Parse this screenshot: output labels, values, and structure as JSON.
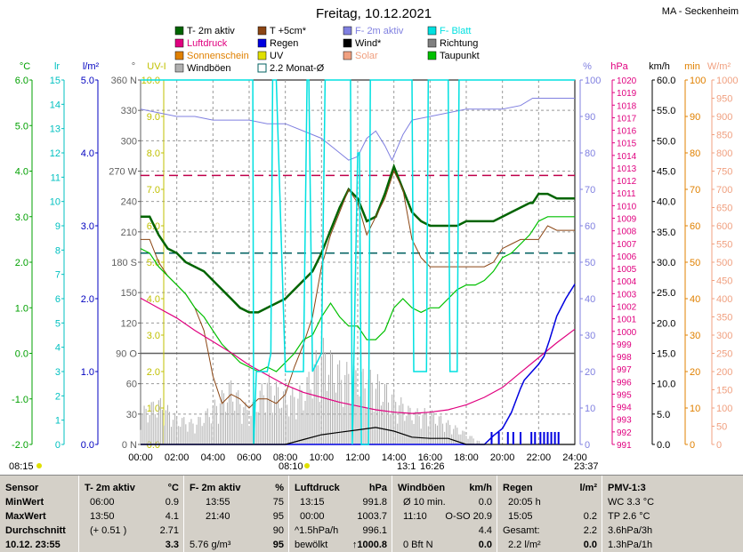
{
  "chart_data": {
    "type": "line",
    "title": "Freitag, 10.12.2021",
    "station": "MA - Seckenheim",
    "x_ticks": [
      "00:00",
      "02:00",
      "04:00",
      "06:00",
      "08:00",
      "10:00",
      "12:00",
      "14:00",
      "16:00",
      "18:00",
      "20:00",
      "22:00",
      "24:00"
    ],
    "legend": [
      {
        "label": "T- 2m aktiv",
        "color": "#006400"
      },
      {
        "label": "T +5cm*",
        "color": "#8b4513"
      },
      {
        "label": "F- 2m aktiv",
        "color": "#8080e0"
      },
      {
        "label": "F- Blatt",
        "color": "#00e0e0"
      },
      {
        "label": "Luftdruck",
        "color": "#e0007f"
      },
      {
        "label": "Regen",
        "color": "#0000e0"
      },
      {
        "label": "Wind*",
        "color": "#000000"
      },
      {
        "label": "Richtung",
        "color": "#808080"
      },
      {
        "label": "Sonnenschein",
        "color": "#e08000"
      },
      {
        "label": "UV",
        "color": "#e0e000"
      },
      {
        "label": "Solar",
        "color": "#f0a080"
      },
      {
        "label": "Taupunkt",
        "color": "#00c000"
      },
      {
        "label": "Windböen",
        "color": "#b0b0b0"
      },
      {
        "label": "2.2 Monat-Ø",
        "color": "#006060"
      }
    ],
    "axes": [
      {
        "unit": "°C",
        "color": "#00a000",
        "ticks": [
          "6.0",
          "5.0",
          "4.0",
          "3.0",
          "2.0",
          "1.0",
          "0.0",
          "-1.0",
          "-2.0"
        ]
      },
      {
        "unit": "lr",
        "color": "#00c0c0",
        "ticks": [
          "15",
          "14",
          "13",
          "12",
          "11",
          "10",
          "9",
          "8",
          "7",
          "6",
          "5",
          "4",
          "3",
          "2",
          "1",
          "0"
        ]
      },
      {
        "unit": "l/m²",
        "color": "#0000c0",
        "ticks": [
          "5.0",
          "4.0",
          "3.0",
          "2.0",
          "1.0",
          "0.0"
        ]
      },
      {
        "unit": "°",
        "color": "#606060",
        "ticks": [
          "360 N",
          "330",
          "300",
          "270 W",
          "240",
          "210",
          "180 S",
          "150",
          "120",
          "90 O",
          "60",
          "30",
          "0 N"
        ]
      },
      {
        "unit": "UV-I",
        "color": "#c0c000",
        "ticks": [
          "10.0",
          "9.0",
          "8.0",
          "7.0",
          "6.0",
          "5.0",
          "4.0",
          "3.0",
          "2.0",
          "1.0",
          "0.0"
        ]
      },
      {
        "unit": "%",
        "color": "#8080e0",
        "ticks": [
          "100",
          "90",
          "80",
          "70",
          "60",
          "50",
          "40",
          "30",
          "20",
          "10",
          "0"
        ]
      },
      {
        "unit": "hPa",
        "color": "#e0007f",
        "ticks": [
          "1020",
          "1019",
          "1018",
          "1017",
          "1016",
          "1015",
          "1014",
          "1013",
          "1012",
          "1011",
          "1010",
          "1009",
          "1008",
          "1007",
          "1006",
          "1005",
          "1004",
          "1003",
          "1002",
          "1001",
          "1000",
          "999",
          "998",
          "997",
          "996",
          "995",
          "994",
          "993",
          "992",
          "991"
        ]
      },
      {
        "unit": "km/h",
        "color": "#000000",
        "ticks": [
          "60.0",
          "55.0",
          "50.0",
          "45.0",
          "40.0",
          "35.0",
          "30.0",
          "25.0",
          "20.0",
          "15.0",
          "10.0",
          "5.0",
          "0.0"
        ]
      },
      {
        "unit": "min",
        "color": "#e08000",
        "ticks": [
          "100",
          "90",
          "80",
          "70",
          "60",
          "50",
          "40",
          "30",
          "20",
          "10",
          "0"
        ]
      },
      {
        "unit": "W/m²",
        "color": "#f0a080",
        "ticks": [
          "1000",
          "950",
          "900",
          "850",
          "800",
          "750",
          "700",
          "650",
          "600",
          "550",
          "500",
          "450",
          "400",
          "350",
          "300",
          "250",
          "200",
          "150",
          "100",
          "50",
          "0"
        ]
      }
    ],
    "markers": {
      "sunrise": "08:15",
      "sunset_left": "08:10",
      "culmination": "13:1",
      "culmination2": "16:26",
      "moonset": "23:37"
    },
    "hlines": [
      {
        "name": "pressure-avg",
        "value_hpa": 1012.7,
        "color": "#c0004a"
      },
      {
        "name": "temp-month-avg",
        "value_c": 2.2,
        "color": "#006060"
      }
    ],
    "series": [
      {
        "name": "T- 2m aktiv",
        "axis": "°C",
        "x": [
          0,
          0.5,
          1,
          1.5,
          2,
          2.5,
          3,
          3.5,
          4,
          4.5,
          5,
          5.5,
          6,
          6.5,
          7,
          7.5,
          8,
          8.5,
          9,
          9.5,
          10,
          10.5,
          11,
          11.5,
          12,
          12.5,
          13,
          13.5,
          13.83,
          14,
          14.5,
          15,
          15.5,
          16,
          16.5,
          17,
          17.5,
          18,
          18.5,
          19,
          19.5,
          20,
          20.5,
          21,
          21.5,
          21.67,
          22,
          22.5,
          23,
          23.5,
          24
        ],
        "y": [
          3.0,
          3.0,
          2.6,
          2.3,
          2.2,
          2.0,
          1.9,
          1.8,
          1.6,
          1.4,
          1.2,
          1.0,
          0.9,
          0.9,
          1.0,
          1.1,
          1.2,
          1.4,
          1.6,
          1.8,
          2.2,
          2.7,
          3.2,
          3.6,
          3.4,
          2.9,
          3.0,
          3.5,
          3.9,
          4.1,
          3.6,
          3.1,
          2.9,
          2.8,
          2.8,
          2.8,
          2.8,
          2.9,
          2.9,
          2.9,
          2.9,
          3.0,
          3.1,
          3.2,
          3.3,
          3.3,
          3.5,
          3.5,
          3.4,
          3.4,
          3.4
        ]
      },
      {
        "name": "T +5cm*",
        "axis": "°C",
        "x": [
          0,
          0.5,
          1,
          1.5,
          2,
          2.5,
          3,
          3.5,
          4,
          4.5,
          5,
          5.5,
          6,
          6.5,
          7,
          7.5,
          8,
          8.5,
          9,
          9.5,
          10,
          10.5,
          11,
          11.5,
          12,
          12.5,
          13,
          13.5,
          14,
          14.5,
          15,
          15.5,
          16,
          16.5,
          17,
          17.5,
          18,
          18.5,
          19,
          19.5,
          20,
          20.5,
          21,
          21.5,
          22,
          22.5,
          23,
          23.5,
          24
        ],
        "y": [
          2.5,
          2.5,
          2.0,
          1.7,
          1.5,
          1.3,
          1.0,
          0.5,
          -0.5,
          -1.1,
          -0.9,
          -1.0,
          -1.2,
          -1.0,
          -1.0,
          -1.1,
          -0.9,
          -0.3,
          0.2,
          0.8,
          1.9,
          2.6,
          3.1,
          3.6,
          3.3,
          2.6,
          3.0,
          3.4,
          4.0,
          3.6,
          2.5,
          2.1,
          1.9,
          1.9,
          1.9,
          1.9,
          1.9,
          1.9,
          1.9,
          2.0,
          2.3,
          2.4,
          2.5,
          2.5,
          2.5,
          2.8,
          2.7,
          2.7,
          2.7
        ]
      },
      {
        "name": "Taupunkt",
        "axis": "°C",
        "x": [
          0,
          0.5,
          1,
          1.5,
          2,
          2.5,
          3,
          3.5,
          4,
          4.5,
          5,
          5.5,
          6,
          6.5,
          7,
          7.5,
          8,
          8.5,
          9,
          9.5,
          10,
          10.5,
          11,
          11.5,
          12,
          12.5,
          13,
          13.5,
          14,
          14.5,
          15,
          15.5,
          16,
          16.5,
          17,
          17.5,
          18,
          18.5,
          19,
          19.5,
          20,
          20.5,
          21,
          21.5,
          22,
          22.5,
          23,
          23.5,
          24
        ],
        "y": [
          2.3,
          2.2,
          1.9,
          1.7,
          1.5,
          1.3,
          1.0,
          0.8,
          0.5,
          0.2,
          0.0,
          -0.2,
          -0.3,
          -0.4,
          -0.3,
          -0.4,
          -0.2,
          0.0,
          0.3,
          0.4,
          0.8,
          1.1,
          0.8,
          0.6,
          0.6,
          0.3,
          0.3,
          0.5,
          1.0,
          1.2,
          1.0,
          0.9,
          1.0,
          1.0,
          1.2,
          1.4,
          1.5,
          1.5,
          1.6,
          1.8,
          2.1,
          2.2,
          2.4,
          2.6,
          2.9,
          3.0,
          3.0,
          3.0,
          3.0
        ]
      },
      {
        "name": "F- 2m aktiv",
        "axis": "%",
        "x": [
          0,
          1,
          2,
          3,
          4,
          5,
          6,
          7,
          8,
          9,
          10,
          11,
          11.5,
          12,
          12.5,
          13,
          13.5,
          13.9,
          14.5,
          15,
          16,
          17,
          18,
          19,
          20,
          21,
          21.67,
          22,
          23,
          24
        ],
        "y": [
          92,
          91,
          90,
          90,
          89,
          89,
          89,
          88,
          88,
          86,
          84,
          80,
          78,
          79,
          84,
          86,
          82,
          78,
          85,
          89,
          90,
          91,
          92,
          92,
          92,
          93,
          95,
          95,
          95,
          95
        ]
      },
      {
        "name": "Luftdruck",
        "axis": "hPa",
        "x": [
          0,
          1,
          2,
          3,
          4,
          5,
          6,
          7,
          8,
          9,
          10,
          11,
          12,
          13,
          14,
          15,
          16,
          17,
          18,
          19,
          20,
          21,
          22,
          23,
          24
        ],
        "y": [
          1002.8,
          1002.0,
          1001.2,
          1000.2,
          999.3,
          998.4,
          997.4,
          996.6,
          995.8,
          995.2,
          994.8,
          994.4,
          994.1,
          993.8,
          993.6,
          993.5,
          993.6,
          993.8,
          994.2,
          994.8,
          995.6,
          996.8,
          998.0,
          999.2,
          1000.3
        ]
      },
      {
        "name": "Regen",
        "axis": "l/m²",
        "x": [
          0,
          19,
          19.5,
          20,
          20.5,
          21,
          21.2,
          21.6,
          22,
          22.3,
          22.6,
          23,
          23.5,
          24
        ],
        "y": [
          0,
          0,
          0.12,
          0.22,
          0.44,
          0.77,
          0.88,
          0.99,
          1.1,
          1.21,
          1.43,
          1.76,
          2.0,
          2.2
        ]
      },
      {
        "name": "F- Blatt",
        "axis": "%",
        "x": [
          0,
          6.2,
          6.25,
          6.4,
          6.5,
          7,
          7.2,
          7.3,
          7.5,
          8,
          8.5,
          9,
          9.2,
          9.3,
          9.5,
          10,
          10.2,
          10.3,
          10.5,
          11,
          11.6,
          11.7,
          12,
          12.1,
          12.2,
          12.6,
          12.7,
          14,
          14.1,
          15,
          15.1,
          15.8,
          15.9,
          16,
          17,
          17.1,
          17.5,
          17.6,
          24
        ],
        "y": [
          100,
          100,
          0,
          20,
          20,
          20,
          25,
          100,
          100,
          20,
          20,
          20,
          100,
          100,
          20,
          25,
          100,
          100,
          100,
          100,
          100,
          0,
          80,
          80,
          0,
          0,
          100,
          100,
          100,
          100,
          20,
          20,
          100,
          100,
          100,
          20,
          20,
          100,
          100
        ]
      },
      {
        "name": "Wind*",
        "axis": "km/h",
        "x": [
          0,
          8,
          9,
          10,
          11,
          12,
          13,
          14,
          15,
          16,
          17,
          18,
          24
        ],
        "y": [
          0,
          0,
          0.8,
          1.6,
          2.0,
          2.4,
          2.8,
          2.2,
          1.2,
          1.0,
          1.0,
          0,
          0
        ]
      },
      {
        "name": "Windböen",
        "axis": "km/h",
        "x": [
          0,
          1,
          2,
          3,
          4,
          5,
          6,
          7,
          8,
          9,
          10,
          11,
          12,
          13,
          14,
          15,
          16,
          17,
          18,
          19,
          20,
          21,
          22,
          23,
          24
        ],
        "y": [
          6,
          8,
          5,
          4,
          7,
          11,
          6,
          12,
          9,
          10,
          18,
          14,
          13,
          12,
          9,
          6,
          6,
          4,
          2,
          0,
          0,
          0,
          0,
          0,
          0
        ]
      }
    ]
  },
  "stats": {
    "sensor": {
      "head": "Sensor",
      "rows": [
        "MinWert",
        "MaxWert",
        "Durchschnitt",
        "10.12. 23:55"
      ]
    },
    "temp": {
      "head": "T- 2m aktiv",
      "unit": "°C",
      "rows": [
        [
          "06:00",
          "0.9"
        ],
        [
          "13:50",
          "4.1"
        ],
        [
          "(+ 0.51 )",
          "2.71"
        ],
        [
          "",
          "3.3"
        ]
      ]
    },
    "hum": {
      "head": "F- 2m aktiv",
      "unit": "%",
      "rows": [
        [
          "13:55",
          "75"
        ],
        [
          "21:40",
          "95"
        ],
        [
          "",
          "90"
        ],
        [
          "5.76 g/m³",
          "95"
        ]
      ]
    },
    "pres": {
      "head": "Luftdruck",
      "unit": "hPa",
      "rows": [
        [
          "13:15",
          "991.8"
        ],
        [
          "00:00",
          "1003.7"
        ],
        [
          "^1.5hPa/h",
          "996.1"
        ],
        [
          "bewölkt",
          "1000.8"
        ]
      ],
      "arrow": "↑"
    },
    "wind": {
      "head": "Windböen",
      "unit": "km/h",
      "rows": [
        [
          "Ø 10 min.",
          "0.0"
        ],
        [
          "11:10",
          "O-SO 20.9"
        ],
        [
          "",
          "4.4"
        ],
        [
          "0 Bft N",
          "0.0"
        ]
      ]
    },
    "rain": {
      "head": "Regen",
      "unit": "l/m²",
      "rows": [
        [
          "20:05 h",
          ""
        ],
        [
          "15:05",
          "0.2"
        ],
        [
          "Gesamt:",
          "2.2"
        ],
        [
          "2.2 l/m²",
          "0.0"
        ]
      ]
    },
    "pmv": {
      "head": "PMV-1:3",
      "rows": [
        "WC 3.3 °C",
        "TP 2.6 °C",
        "3.6hPa/3h",
        "1.3hPa/1h"
      ]
    }
  }
}
